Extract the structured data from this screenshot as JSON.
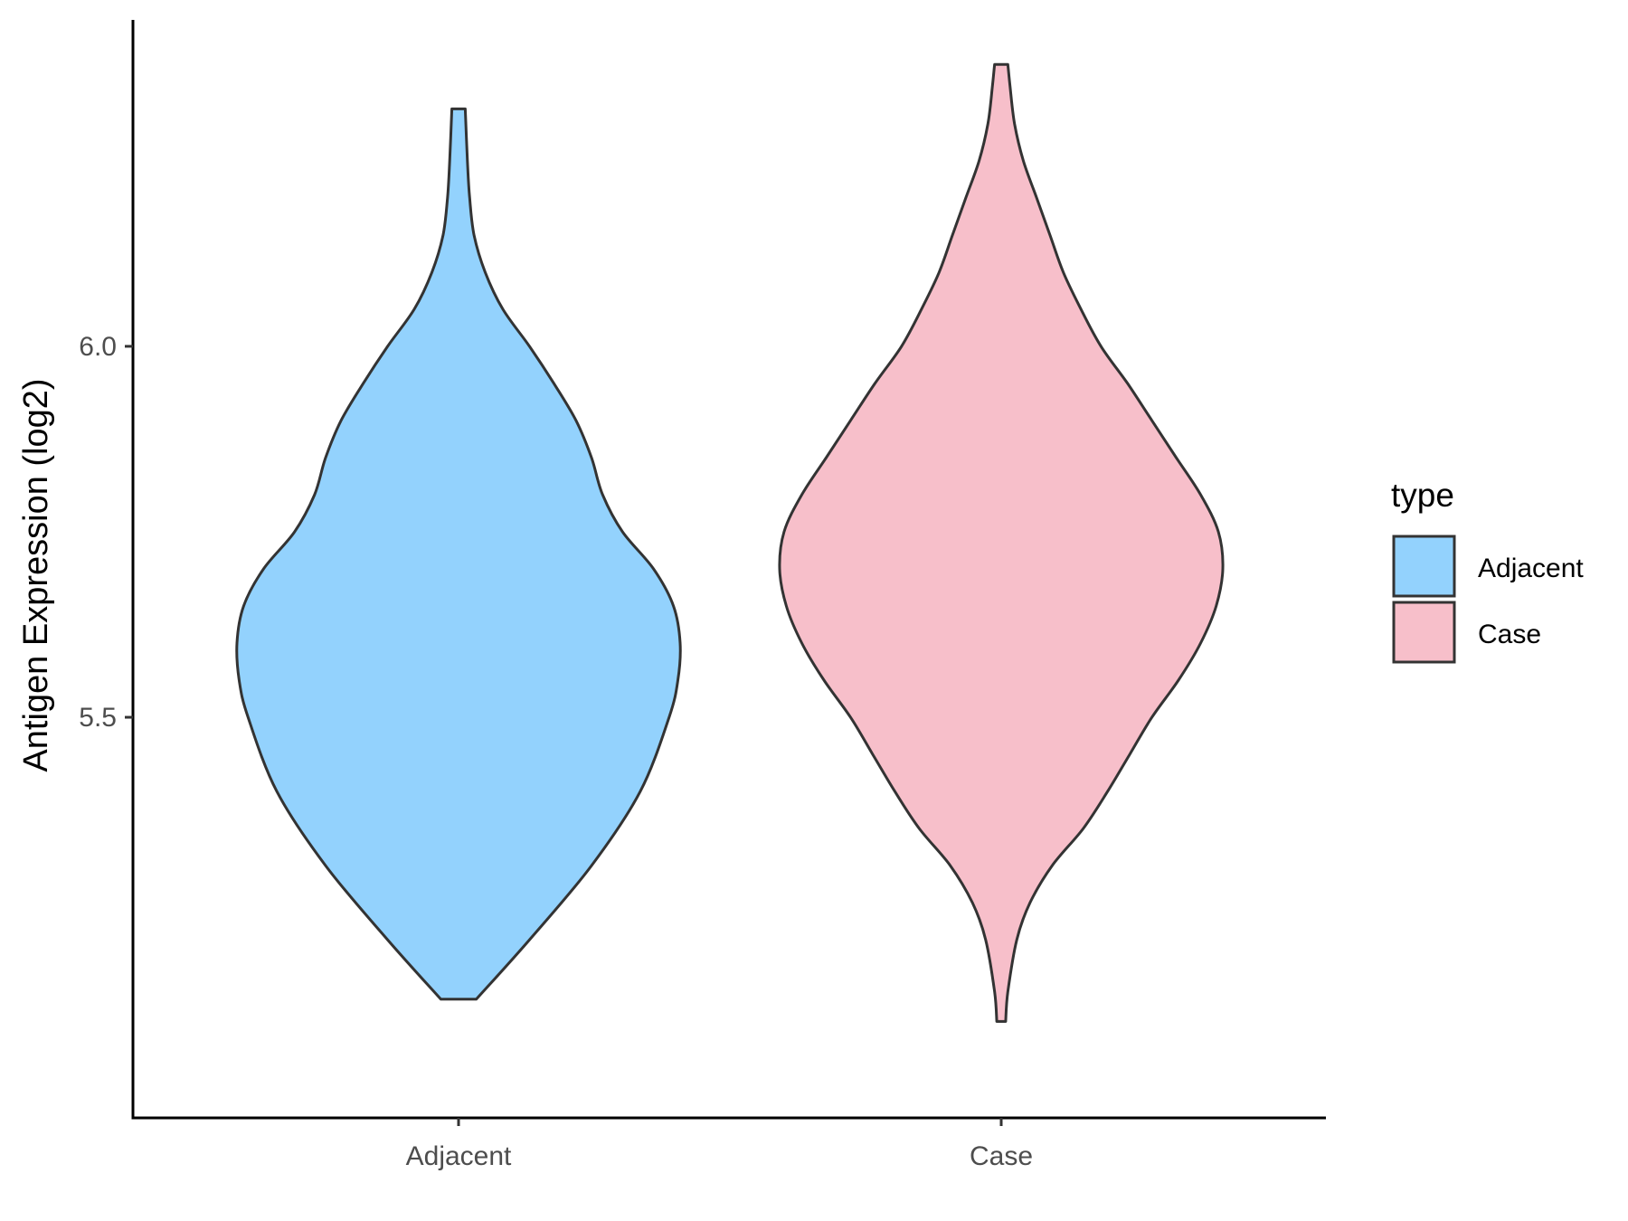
{
  "chart_data": {
    "type": "violin",
    "ylabel": "Antigen Expression (log2)",
    "xlabel": "",
    "categories": [
      "Adjacent",
      "Case"
    ],
    "yticks": [
      5.5,
      6.0
    ],
    "ytick_labels": [
      "5.5",
      "6.0"
    ],
    "ylim": [
      4.96,
      6.44
    ],
    "grid": false,
    "legend": {
      "title": "type",
      "placement": "right",
      "entries": [
        "Adjacent",
        "Case"
      ]
    },
    "colors": {
      "Adjacent": "#93d2fd",
      "Case": "#f7bfca",
      "outline": "#333333"
    },
    "series": [
      {
        "name": "Adjacent",
        "min": 5.12,
        "max": 6.32,
        "profile": [
          [
            5.12,
            0.08
          ],
          [
            5.2,
            0.32
          ],
          [
            5.3,
            0.6
          ],
          [
            5.4,
            0.82
          ],
          [
            5.5,
            0.95
          ],
          [
            5.55,
            0.99
          ],
          [
            5.6,
            1.0
          ],
          [
            5.65,
            0.97
          ],
          [
            5.7,
            0.88
          ],
          [
            5.75,
            0.74
          ],
          [
            5.8,
            0.65
          ],
          [
            5.85,
            0.6
          ],
          [
            5.9,
            0.53
          ],
          [
            5.95,
            0.43
          ],
          [
            6.0,
            0.32
          ],
          [
            6.05,
            0.2
          ],
          [
            6.1,
            0.12
          ],
          [
            6.15,
            0.07
          ],
          [
            6.2,
            0.05
          ],
          [
            6.25,
            0.04
          ],
          [
            6.32,
            0.03
          ]
        ]
      },
      {
        "name": "Case",
        "min": 5.09,
        "max": 6.38,
        "profile": [
          [
            5.09,
            0.02
          ],
          [
            5.13,
            0.03
          ],
          [
            5.2,
            0.07
          ],
          [
            5.25,
            0.13
          ],
          [
            5.3,
            0.23
          ],
          [
            5.35,
            0.37
          ],
          [
            5.4,
            0.48
          ],
          [
            5.45,
            0.58
          ],
          [
            5.5,
            0.68
          ],
          [
            5.55,
            0.8
          ],
          [
            5.6,
            0.9
          ],
          [
            5.65,
            0.97
          ],
          [
            5.7,
            1.0
          ],
          [
            5.75,
            0.98
          ],
          [
            5.8,
            0.9
          ],
          [
            5.85,
            0.79
          ],
          [
            5.9,
            0.68
          ],
          [
            5.95,
            0.57
          ],
          [
            6.0,
            0.45
          ],
          [
            6.05,
            0.36
          ],
          [
            6.1,
            0.28
          ],
          [
            6.15,
            0.22
          ],
          [
            6.2,
            0.16
          ],
          [
            6.25,
            0.1
          ],
          [
            6.3,
            0.06
          ],
          [
            6.35,
            0.04
          ],
          [
            6.38,
            0.03
          ]
        ]
      }
    ]
  }
}
